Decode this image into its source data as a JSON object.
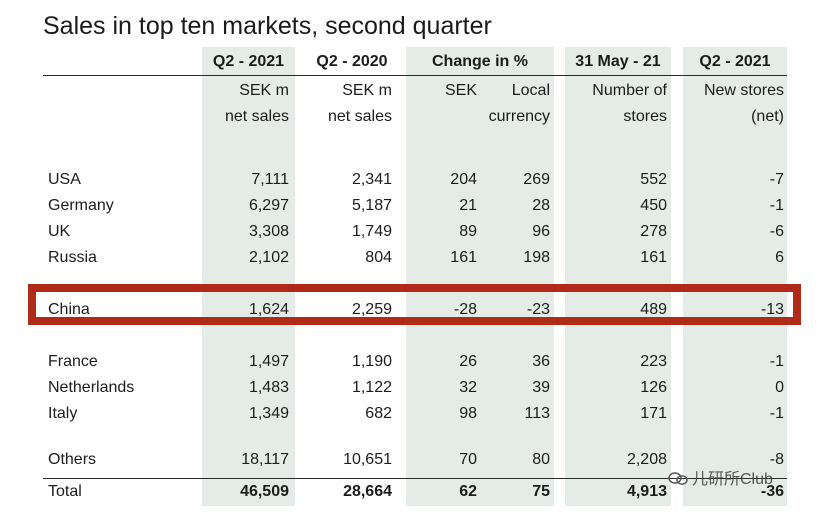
{
  "title": "Sales in top ten markets, second quarter",
  "headers": {
    "q2_2021": "Q2 - 2021",
    "q2_2020": "Q2 - 2020",
    "change": "Change in %",
    "may21": "31 May - 21",
    "q2_2021_stores": "Q2 - 2021"
  },
  "subheaders": {
    "sales21_l1": "SEK m",
    "sales21_l2": "net sales",
    "sales20_l1": "SEK m",
    "sales20_l2": "net sales",
    "sek": "SEK",
    "local_l1": "Local",
    "local_l2": "currency",
    "stores_l1": "Number of",
    "stores_l2": "stores",
    "new_l1": "New stores",
    "new_l2": "(net)"
  },
  "rows": [
    {
      "market": "USA",
      "s21": "7,111",
      "s20": "2,341",
      "sek": "204",
      "local": "269",
      "stores": "552",
      "new": "-7"
    },
    {
      "market": "Germany",
      "s21": "6,297",
      "s20": "5,187",
      "sek": "21",
      "local": "28",
      "stores": "450",
      "new": "-1"
    },
    {
      "market": "UK",
      "s21": "3,308",
      "s20": "1,749",
      "sek": "89",
      "local": "96",
      "stores": "278",
      "new": "-6"
    },
    {
      "market": "Russia",
      "s21": "2,102",
      "s20": "804",
      "sek": "161",
      "local": "198",
      "stores": "161",
      "new": "6"
    },
    {
      "market": "China",
      "s21": "1,624",
      "s20": "2,259",
      "sek": "-28",
      "local": "-23",
      "stores": "489",
      "new": "-13"
    },
    {
      "market": "France",
      "s21": "1,497",
      "s20": "1,190",
      "sek": "26",
      "local": "36",
      "stores": "223",
      "new": "-1"
    },
    {
      "market": "Netherlands",
      "s21": "1,483",
      "s20": "1,122",
      "sek": "32",
      "local": "39",
      "stores": "126",
      "new": "0"
    },
    {
      "market": "Italy",
      "s21": "1,349",
      "s20": "682",
      "sek": "98",
      "local": "113",
      "stores": "171",
      "new": "-1"
    },
    {
      "market": "Others",
      "s21": "18,117",
      "s20": "10,651",
      "sek": "70",
      "local": "80",
      "stores": "2,208",
      "new": "-8"
    },
    {
      "market": "Total",
      "s21": "46,509",
      "s20": "28,664",
      "sek": "62",
      "local": "75",
      "stores": "4,913",
      "new": "-36"
    }
  ],
  "watermark": "儿研所Club",
  "colors": {
    "shade": "#e5ece8",
    "highlight": "#b02a1a"
  }
}
